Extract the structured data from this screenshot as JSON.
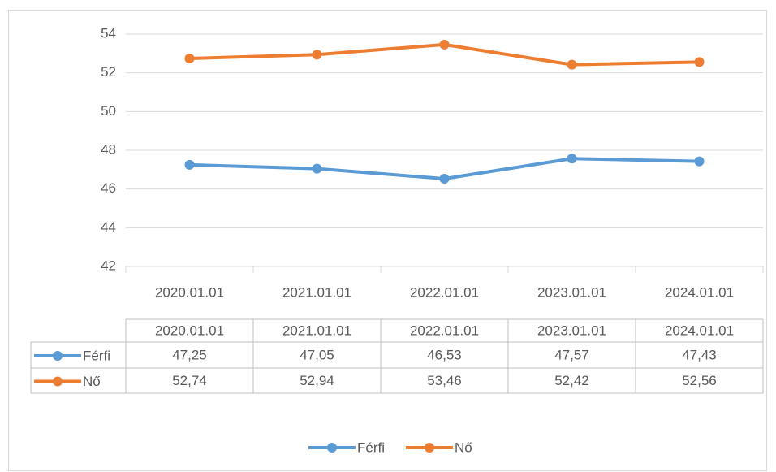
{
  "chart_data": {
    "type": "line",
    "categories": [
      "2020.01.01",
      "2021.01.01",
      "2022.01.01",
      "2023.01.01",
      "2024.01.01"
    ],
    "series": [
      {
        "name": "Férfi",
        "color": "#5b9bd5",
        "values": [
          47.25,
          47.05,
          46.53,
          47.57,
          47.43
        ],
        "value_labels": [
          "47,25",
          "47,05",
          "46,53",
          "47,57",
          "47,43"
        ]
      },
      {
        "name": "Nő",
        "color": "#ed7d31",
        "values": [
          52.74,
          52.94,
          53.46,
          52.42,
          52.56
        ],
        "value_labels": [
          "52,74",
          "52,94",
          "53,46",
          "52,42",
          "52,56"
        ]
      }
    ],
    "ylim": [
      42,
      54
    ],
    "yticks": [
      42,
      44,
      46,
      48,
      50,
      52,
      54
    ],
    "grid": true,
    "legend": "bottom"
  }
}
